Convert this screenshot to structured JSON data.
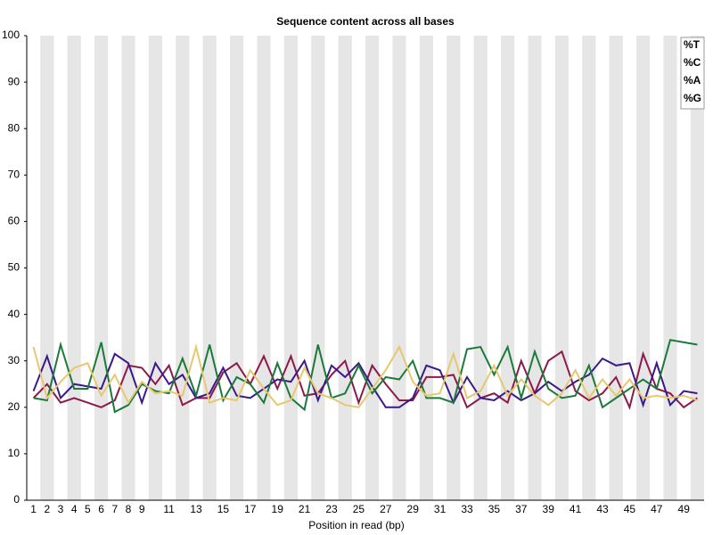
{
  "chart_data": {
    "type": "line",
    "title": "Sequence content across all bases",
    "x_label": "Position in read (bp)",
    "categories": [
      "1",
      "2",
      "3",
      "4",
      "5",
      "6",
      "7",
      "8",
      "9",
      null,
      "11",
      null,
      "13",
      null,
      "15",
      null,
      "17",
      null,
      "19",
      null,
      "21",
      null,
      "23",
      null,
      "25",
      null,
      "27",
      null,
      "29",
      null,
      "31",
      null,
      "33",
      null,
      "35",
      null,
      "37",
      null,
      "39",
      null,
      "41",
      null,
      "43",
      null,
      "45",
      null,
      "47",
      null,
      "49",
      null
    ],
    "ylim": [
      0,
      100
    ],
    "yticks": [
      0,
      10,
      20,
      30,
      40,
      50,
      60,
      70,
      80,
      90,
      100
    ],
    "legend": "top-right",
    "band_color": "#e6e6e6",
    "series": [
      {
        "name": "%T",
        "color": "#8b1a4b",
        "values": [
          22,
          25,
          21,
          22,
          21,
          20,
          21.5,
          29,
          28.5,
          25,
          29,
          20.5,
          22,
          22,
          27.5,
          29.5,
          25,
          31,
          24,
          31,
          22.5,
          23,
          27,
          30,
          21,
          29,
          25,
          21.5,
          21.5,
          26.5,
          26.5,
          27,
          20,
          22,
          23,
          21,
          30,
          23,
          30,
          32,
          23.5,
          21.5,
          23,
          26.5,
          20,
          31.5,
          24,
          23,
          20,
          22
        ]
      },
      {
        "name": "%C",
        "color": "#3a1a8b",
        "values": [
          23.5,
          31,
          22,
          25,
          24.5,
          24,
          31.5,
          29.5,
          21,
          29.5,
          25,
          27,
          22,
          23,
          28.5,
          22.5,
          22,
          24,
          26,
          25.5,
          30,
          21.5,
          29,
          26.5,
          29.5,
          24.5,
          20,
          20,
          22,
          29,
          28,
          21,
          26.5,
          22,
          21.5,
          23.5,
          21.5,
          23,
          25.5,
          23.5,
          25.5,
          27,
          30.5,
          29,
          29.5,
          20.5,
          29.5,
          20.5,
          23.5,
          23
        ]
      },
      {
        "name": "%A",
        "color": "#1a7a3a",
        "values": [
          22,
          21.5,
          33.5,
          24,
          24,
          34,
          19,
          20.5,
          25,
          23.5,
          23,
          30.5,
          22.5,
          33.5,
          21.5,
          26.5,
          25,
          21,
          29.5,
          22,
          19.5,
          33.5,
          22,
          23,
          29,
          23,
          26.5,
          26,
          30,
          22,
          22,
          21,
          32.5,
          33,
          27,
          33,
          22,
          32,
          24,
          22,
          22.5,
          29,
          20,
          22,
          24,
          26,
          24,
          34.5,
          34,
          33.5
        ]
      },
      {
        "name": "%G",
        "color": "#e6c86e",
        "values": [
          33,
          22,
          25.5,
          28.5,
          29.5,
          22.5,
          27,
          21,
          25.5,
          23,
          23.5,
          22.5,
          33,
          21,
          22,
          21.5,
          28,
          24,
          20.5,
          21.5,
          28.5,
          23,
          22,
          20.5,
          20,
          24,
          28,
          33,
          25.5,
          22.5,
          23,
          31.5,
          22,
          23.5,
          29,
          22.5,
          26,
          22.5,
          20.5,
          23,
          28,
          22,
          26,
          22.5,
          26,
          22,
          22.5,
          22,
          22.5,
          21.5
        ]
      }
    ]
  }
}
